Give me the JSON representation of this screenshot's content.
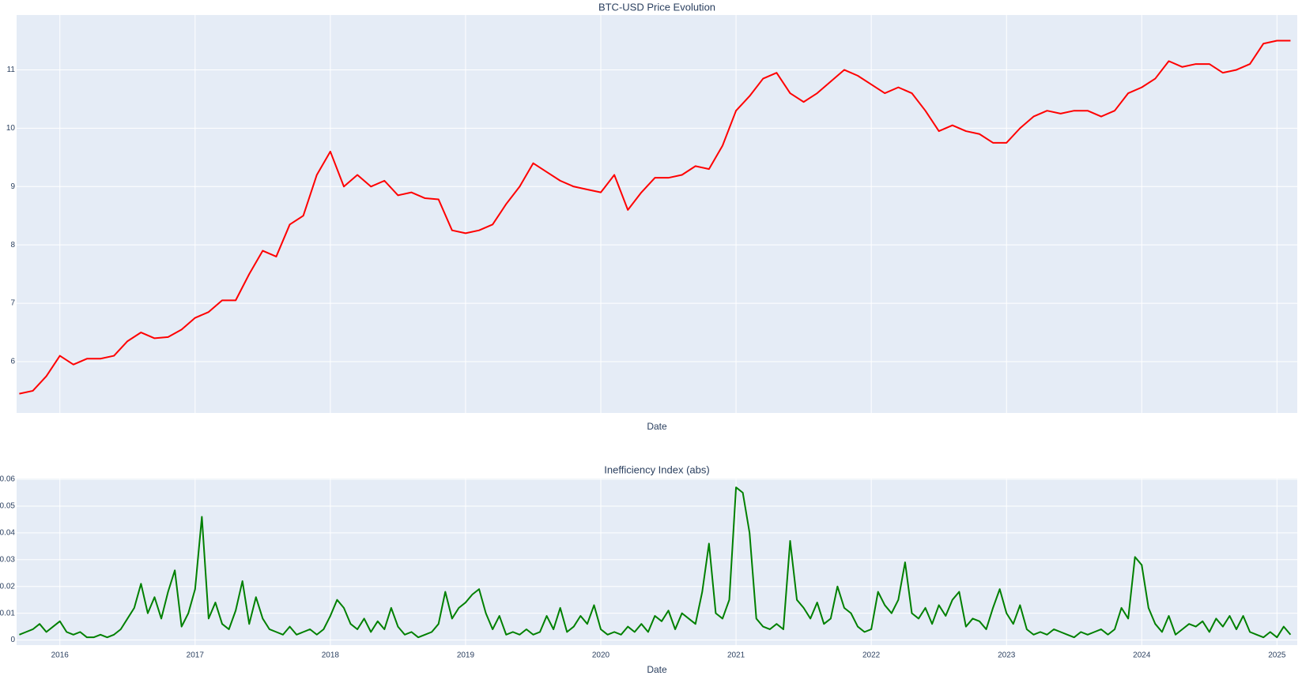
{
  "chart_data": [
    {
      "type": "line",
      "title": "BTC-USD Price Evolution",
      "xlabel": "Date",
      "xlim": [
        2015.68,
        2025.15
      ],
      "ylim": [
        5.12,
        11.94
      ],
      "xticks": [
        2016,
        2017,
        2018,
        2019,
        2020,
        2021,
        2022,
        2023,
        2024,
        2025
      ],
      "show_xtick_labels": false,
      "yticks": [
        6,
        7,
        8,
        9,
        10,
        11
      ],
      "grid": true,
      "x": [
        2015.7,
        2015.8,
        2015.9,
        2016.0,
        2016.1,
        2016.2,
        2016.3,
        2016.4,
        2016.5,
        2016.6,
        2016.7,
        2016.8,
        2016.9,
        2017.0,
        2017.1,
        2017.2,
        2017.3,
        2017.4,
        2017.5,
        2017.6,
        2017.7,
        2017.8,
        2017.9,
        2018.0,
        2018.1,
        2018.2,
        2018.3,
        2018.4,
        2018.5,
        2018.6,
        2018.7,
        2018.8,
        2018.9,
        2019.0,
        2019.1,
        2019.2,
        2019.3,
        2019.4,
        2019.5,
        2019.6,
        2019.7,
        2019.8,
        2019.9,
        2020.0,
        2020.1,
        2020.2,
        2020.3,
        2020.4,
        2020.5,
        2020.6,
        2020.7,
        2020.8,
        2020.9,
        2021.0,
        2021.1,
        2021.2,
        2021.3,
        2021.4,
        2021.5,
        2021.6,
        2021.7,
        2021.8,
        2021.9,
        2022.0,
        2022.1,
        2022.2,
        2022.3,
        2022.4,
        2022.5,
        2022.6,
        2022.7,
        2022.8,
        2022.9,
        2023.0,
        2023.1,
        2023.2,
        2023.3,
        2023.4,
        2023.5,
        2023.6,
        2023.7,
        2023.8,
        2023.9,
        2024.0,
        2024.1,
        2024.2,
        2024.3,
        2024.4,
        2024.5,
        2024.6,
        2024.7,
        2024.8,
        2024.9,
        2025.0,
        2025.1
      ],
      "series": [
        {
          "color": "#ff0000",
          "values": [
            5.45,
            5.5,
            5.75,
            6.1,
            5.95,
            6.05,
            6.05,
            6.1,
            6.35,
            6.5,
            6.4,
            6.42,
            6.55,
            6.75,
            6.85,
            7.05,
            7.05,
            7.5,
            7.9,
            7.8,
            8.35,
            8.5,
            9.2,
            9.6,
            9.0,
            9.2,
            9.0,
            9.1,
            8.85,
            8.9,
            8.8,
            8.78,
            8.25,
            8.2,
            8.25,
            8.35,
            8.7,
            9.0,
            9.4,
            9.25,
            9.1,
            9.0,
            8.95,
            8.9,
            9.2,
            8.6,
            8.9,
            9.15,
            9.15,
            9.2,
            9.35,
            9.3,
            9.7,
            10.3,
            10.55,
            10.85,
            10.95,
            10.6,
            10.45,
            10.6,
            10.8,
            11.0,
            10.9,
            10.75,
            10.6,
            10.7,
            10.6,
            10.3,
            9.95,
            10.05,
            9.95,
            9.9,
            9.75,
            9.75,
            10.0,
            10.2,
            10.3,
            10.25,
            10.3,
            10.3,
            10.2,
            10.3,
            10.6,
            10.7,
            10.85,
            11.15,
            11.05,
            11.1,
            11.1,
            10.95,
            11.0,
            11.1,
            11.45,
            11.5,
            11.5
          ]
        }
      ]
    },
    {
      "type": "line",
      "title": "Inefficiency Index (abs)",
      "xlabel": "Date",
      "xlim": [
        2015.68,
        2025.15
      ],
      "ylim": [
        -0.0019,
        0.0603
      ],
      "xticks": [
        2016,
        2017,
        2018,
        2019,
        2020,
        2021,
        2022,
        2023,
        2024,
        2025
      ],
      "show_xtick_labels": true,
      "yticks": [
        0,
        0.01,
        0.02,
        0.03,
        0.04,
        0.05,
        0.06
      ],
      "grid": true,
      "x": [
        2015.7,
        2015.75,
        2015.8,
        2015.85,
        2015.9,
        2015.95,
        2016.0,
        2016.05,
        2016.1,
        2016.15,
        2016.2,
        2016.25,
        2016.3,
        2016.35,
        2016.4,
        2016.45,
        2016.5,
        2016.55,
        2016.6,
        2016.65,
        2016.7,
        2016.75,
        2016.8,
        2016.85,
        2016.9,
        2016.95,
        2017.0,
        2017.05,
        2017.1,
        2017.15,
        2017.2,
        2017.25,
        2017.3,
        2017.35,
        2017.4,
        2017.45,
        2017.5,
        2017.55,
        2017.6,
        2017.65,
        2017.7,
        2017.75,
        2017.8,
        2017.85,
        2017.9,
        2017.95,
        2018.0,
        2018.05,
        2018.1,
        2018.15,
        2018.2,
        2018.25,
        2018.3,
        2018.35,
        2018.4,
        2018.45,
        2018.5,
        2018.55,
        2018.6,
        2018.65,
        2018.7,
        2018.75,
        2018.8,
        2018.85,
        2018.9,
        2018.95,
        2019.0,
        2019.05,
        2019.1,
        2019.15,
        2019.2,
        2019.25,
        2019.3,
        2019.35,
        2019.4,
        2019.45,
        2019.5,
        2019.55,
        2019.6,
        2019.65,
        2019.7,
        2019.75,
        2019.8,
        2019.85,
        2019.9,
        2019.95,
        2020.0,
        2020.05,
        2020.1,
        2020.15,
        2020.2,
        2020.25,
        2020.3,
        2020.35,
        2020.4,
        2020.45,
        2020.5,
        2020.55,
        2020.6,
        2020.65,
        2020.7,
        2020.75,
        2020.8,
        2020.85,
        2020.9,
        2020.95,
        2021.0,
        2021.05,
        2021.1,
        2021.15,
        2021.2,
        2021.25,
        2021.3,
        2021.35,
        2021.4,
        2021.45,
        2021.5,
        2021.55,
        2021.6,
        2021.65,
        2021.7,
        2021.75,
        2021.8,
        2021.85,
        2021.9,
        2021.95,
        2022.0,
        2022.05,
        2022.1,
        2022.15,
        2022.2,
        2022.25,
        2022.3,
        2022.35,
        2022.4,
        2022.45,
        2022.5,
        2022.55,
        2022.6,
        2022.65,
        2022.7,
        2022.75,
        2022.8,
        2022.85,
        2022.9,
        2022.95,
        2023.0,
        2023.05,
        2023.1,
        2023.15,
        2023.2,
        2023.25,
        2023.3,
        2023.35,
        2023.4,
        2023.45,
        2023.5,
        2023.55,
        2023.6,
        2023.65,
        2023.7,
        2023.75,
        2023.8,
        2023.85,
        2023.9,
        2023.95,
        2024.0,
        2024.05,
        2024.1,
        2024.15,
        2024.2,
        2024.25,
        2024.3,
        2024.35,
        2024.4,
        2024.45,
        2024.5,
        2024.55,
        2024.6,
        2024.65,
        2024.7,
        2024.75,
        2024.8,
        2024.85,
        2024.9,
        2024.95,
        2025.0,
        2025.05,
        2025.1
      ],
      "series": [
        {
          "color": "#008000",
          "values": [
            0.002,
            0.003,
            0.004,
            0.006,
            0.003,
            0.005,
            0.007,
            0.003,
            0.002,
            0.003,
            0.001,
            0.001,
            0.002,
            0.001,
            0.002,
            0.004,
            0.008,
            0.012,
            0.021,
            0.01,
            0.016,
            0.008,
            0.018,
            0.026,
            0.005,
            0.01,
            0.019,
            0.046,
            0.008,
            0.014,
            0.006,
            0.004,
            0.011,
            0.022,
            0.006,
            0.016,
            0.008,
            0.004,
            0.003,
            0.002,
            0.005,
            0.002,
            0.003,
            0.004,
            0.002,
            0.004,
            0.009,
            0.015,
            0.012,
            0.006,
            0.004,
            0.008,
            0.003,
            0.007,
            0.004,
            0.012,
            0.005,
            0.002,
            0.003,
            0.001,
            0.002,
            0.003,
            0.006,
            0.018,
            0.008,
            0.012,
            0.014,
            0.017,
            0.019,
            0.01,
            0.004,
            0.009,
            0.002,
            0.003,
            0.002,
            0.004,
            0.002,
            0.003,
            0.009,
            0.004,
            0.012,
            0.003,
            0.005,
            0.009,
            0.006,
            0.013,
            0.004,
            0.002,
            0.003,
            0.002,
            0.005,
            0.003,
            0.006,
            0.003,
            0.009,
            0.007,
            0.011,
            0.004,
            0.01,
            0.008,
            0.006,
            0.018,
            0.036,
            0.01,
            0.008,
            0.015,
            0.057,
            0.055,
            0.04,
            0.008,
            0.005,
            0.004,
            0.006,
            0.004,
            0.037,
            0.015,
            0.012,
            0.008,
            0.014,
            0.006,
            0.008,
            0.02,
            0.012,
            0.01,
            0.005,
            0.003,
            0.004,
            0.018,
            0.013,
            0.01,
            0.015,
            0.029,
            0.01,
            0.008,
            0.012,
            0.006,
            0.013,
            0.009,
            0.015,
            0.018,
            0.005,
            0.008,
            0.007,
            0.004,
            0.012,
            0.019,
            0.01,
            0.006,
            0.013,
            0.004,
            0.002,
            0.003,
            0.002,
            0.004,
            0.003,
            0.002,
            0.001,
            0.003,
            0.002,
            0.003,
            0.004,
            0.002,
            0.004,
            0.012,
            0.008,
            0.031,
            0.028,
            0.012,
            0.006,
            0.003,
            0.009,
            0.002,
            0.004,
            0.006,
            0.005,
            0.007,
            0.003,
            0.008,
            0.005,
            0.009,
            0.004,
            0.009,
            0.003,
            0.002,
            0.001,
            0.003,
            0.001,
            0.005,
            0.002
          ]
        }
      ]
    }
  ]
}
